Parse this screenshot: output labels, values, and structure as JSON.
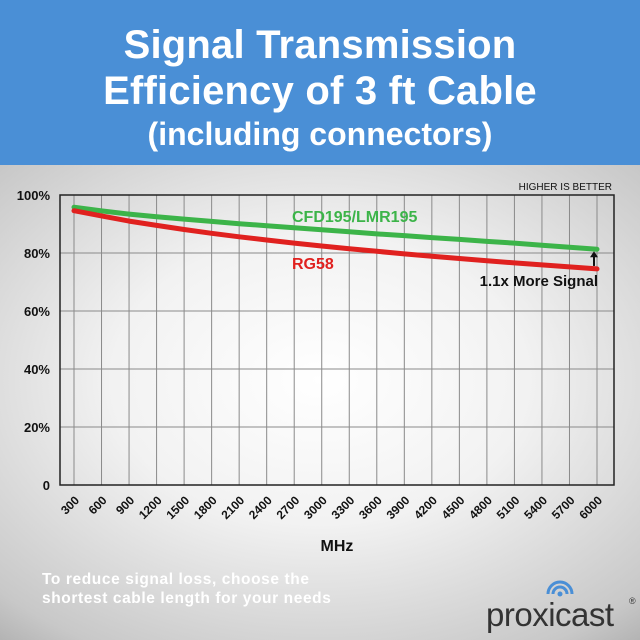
{
  "header": {
    "title_line1": "Signal Transmission",
    "title_line2": "Efficiency of 3 ft Cable",
    "subtitle": "(including connectors)"
  },
  "chart_data": {
    "type": "line",
    "title": "Signal Transmission Efficiency of 3 ft Cable (including connectors)",
    "xlabel": "MHz",
    "ylabel": "",
    "x": [
      300,
      600,
      900,
      1200,
      1500,
      1800,
      2100,
      2400,
      2700,
      3000,
      3300,
      3600,
      3900,
      4200,
      4500,
      4800,
      5100,
      5400,
      5700,
      6000
    ],
    "x_tick_labels": [
      "300",
      "600",
      "900",
      "1200",
      "1500",
      "1800",
      "2100",
      "2400",
      "2700",
      "3000",
      "3300",
      "3600",
      "3900",
      "4200",
      "4500",
      "4800",
      "5100",
      "5400",
      "5700",
      "6000"
    ],
    "y_ticks": [
      0,
      20,
      40,
      60,
      80,
      100
    ],
    "y_tick_labels": [
      "0",
      "20%",
      "40%",
      "60%",
      "80%",
      "100%"
    ],
    "ylim": [
      0,
      100
    ],
    "grid": true,
    "series": [
      {
        "name": "CFD195/LMR195",
        "color": "#3cb449",
        "values": [
          95.8,
          94.5,
          93.4,
          92.5,
          91.7,
          90.9,
          90.1,
          89.4,
          88.7,
          88.0,
          87.3,
          86.6,
          86.0,
          85.3,
          84.7,
          84.0,
          83.4,
          82.7,
          82.0,
          81.3
        ]
      },
      {
        "name": "RG58",
        "color": "#e0211f",
        "values": [
          94.6,
          92.8,
          91.0,
          89.5,
          88.1,
          86.8,
          85.6,
          84.5,
          83.4,
          82.4,
          81.5,
          80.6,
          79.7,
          78.9,
          78.1,
          77.3,
          76.6,
          75.9,
          75.2,
          74.5
        ]
      }
    ],
    "annotations": {
      "corner_note": "HIGHER IS BETTER",
      "comparison": "1.1x More Signal"
    }
  },
  "footer": {
    "note_line1": "To reduce signal loss, choose the",
    "note_line2": "shortest cable length for your needs",
    "brand_name": "proxicast",
    "brand_mark": "®",
    "brand_icon": "wifi-signal-icon",
    "brand_color": "#4a8fd6"
  }
}
